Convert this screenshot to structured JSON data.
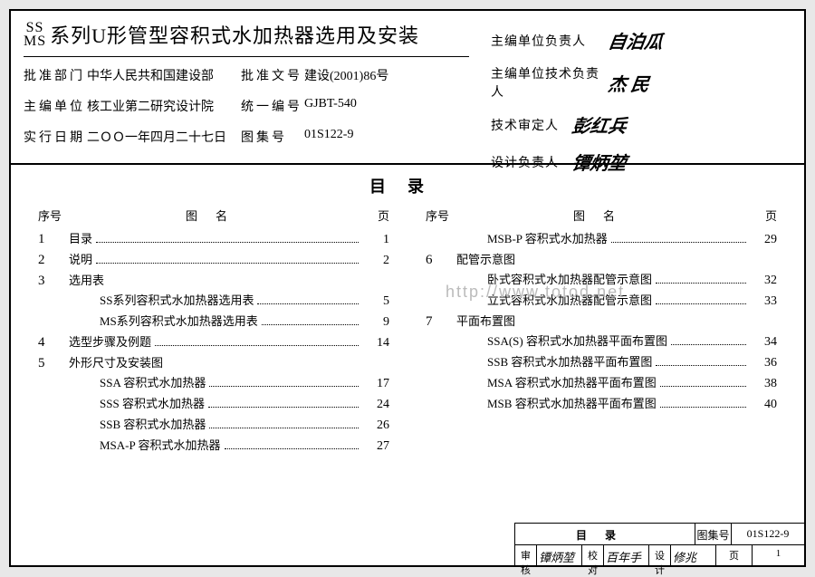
{
  "title_prefix_top": "SS",
  "title_prefix_bot": "MS",
  "title_main": "系列U形管型容积式水加热器选用及安装",
  "info": {
    "approve_dept_label": "批准部门",
    "approve_dept": "中华人民共和国建设部",
    "approve_doc_label": "批准文号",
    "approve_doc": "建设(2001)86号",
    "editor_unit_label": "主编单位",
    "editor_unit": "核工业第二研究设计院",
    "code_label": "统一编号",
    "code": "GJBT-540",
    "exec_date_label": "实行日期",
    "exec_date": "二ＯＯ一年四月二十七日",
    "atlas_label": "图集号",
    "atlas": "01S122-9"
  },
  "sigs": {
    "chief_unit_label": "主编单位负责人",
    "chief_unit_sig": "自泊瓜",
    "tech_unit_label": "主编单位技术负责人",
    "tech_unit_sig": "杰 民",
    "tech_rev_label": "技术审定人",
    "tech_rev_sig": "彭红兵",
    "design_label": "设计负责人",
    "design_sig": "镡炳堃"
  },
  "toc_title": "目录",
  "col_headers": {
    "seq": "序号",
    "name": "图名",
    "page": "页"
  },
  "toc_left": [
    {
      "seq": "1",
      "name": "目录",
      "page": "1"
    },
    {
      "seq": "2",
      "name": "说明",
      "page": "2"
    },
    {
      "seq": "3",
      "name": "选用表",
      "page": ""
    },
    {
      "seq": "",
      "name": "SS系列容积式水加热器选用表",
      "page": "5",
      "indent": true
    },
    {
      "seq": "",
      "name": "MS系列容积式水加热器选用表",
      "page": "9",
      "indent": true
    },
    {
      "seq": "4",
      "name": "选型步骤及例题",
      "page": "14"
    },
    {
      "seq": "5",
      "name": "外形尺寸及安装图",
      "page": ""
    },
    {
      "seq": "",
      "name": "SSA 容积式水加热器",
      "page": "17",
      "indent": true
    },
    {
      "seq": "",
      "name": "SSS 容积式水加热器",
      "page": "24",
      "indent": true
    },
    {
      "seq": "",
      "name": "SSB 容积式水加热器",
      "page": "26",
      "indent": true
    },
    {
      "seq": "",
      "name": "MSA-P 容积式水加热器",
      "page": "27",
      "indent": true
    }
  ],
  "toc_right": [
    {
      "seq": "",
      "name": "MSB-P 容积式水加热器",
      "page": "29",
      "indent": true
    },
    {
      "seq": "6",
      "name": "配管示意图",
      "page": ""
    },
    {
      "seq": "",
      "name": "卧式容积式水加热器配管示意图",
      "page": "32",
      "indent": true
    },
    {
      "seq": "",
      "name": "立式容积式水加热器配管示意图",
      "page": "33",
      "indent": true
    },
    {
      "seq": "7",
      "name": "平面布置图",
      "page": ""
    },
    {
      "seq": "",
      "name": "SSA(S) 容积式水加热器平面布置图",
      "page": "34",
      "indent": true
    },
    {
      "seq": "",
      "name": "SSB 容积式水加热器平面布置图",
      "page": "36",
      "indent": true
    },
    {
      "seq": "",
      "name": "MSA 容积式水加热器平面布置图",
      "page": "38",
      "indent": true
    },
    {
      "seq": "",
      "name": "MSB 容积式水加热器平面布置图",
      "page": "40",
      "indent": true
    }
  ],
  "watermark": "http://www.totod.net",
  "footer": {
    "block_title": "目录",
    "atlas_label": "图集号",
    "atlas": "01S122-9",
    "check_label": "审核",
    "check_sig": "镡炳堃",
    "proof_label": "校对",
    "proof_sig": "百年手",
    "design_label": "设计",
    "design_sig": "修兆",
    "page_label": "页",
    "page": "1"
  }
}
